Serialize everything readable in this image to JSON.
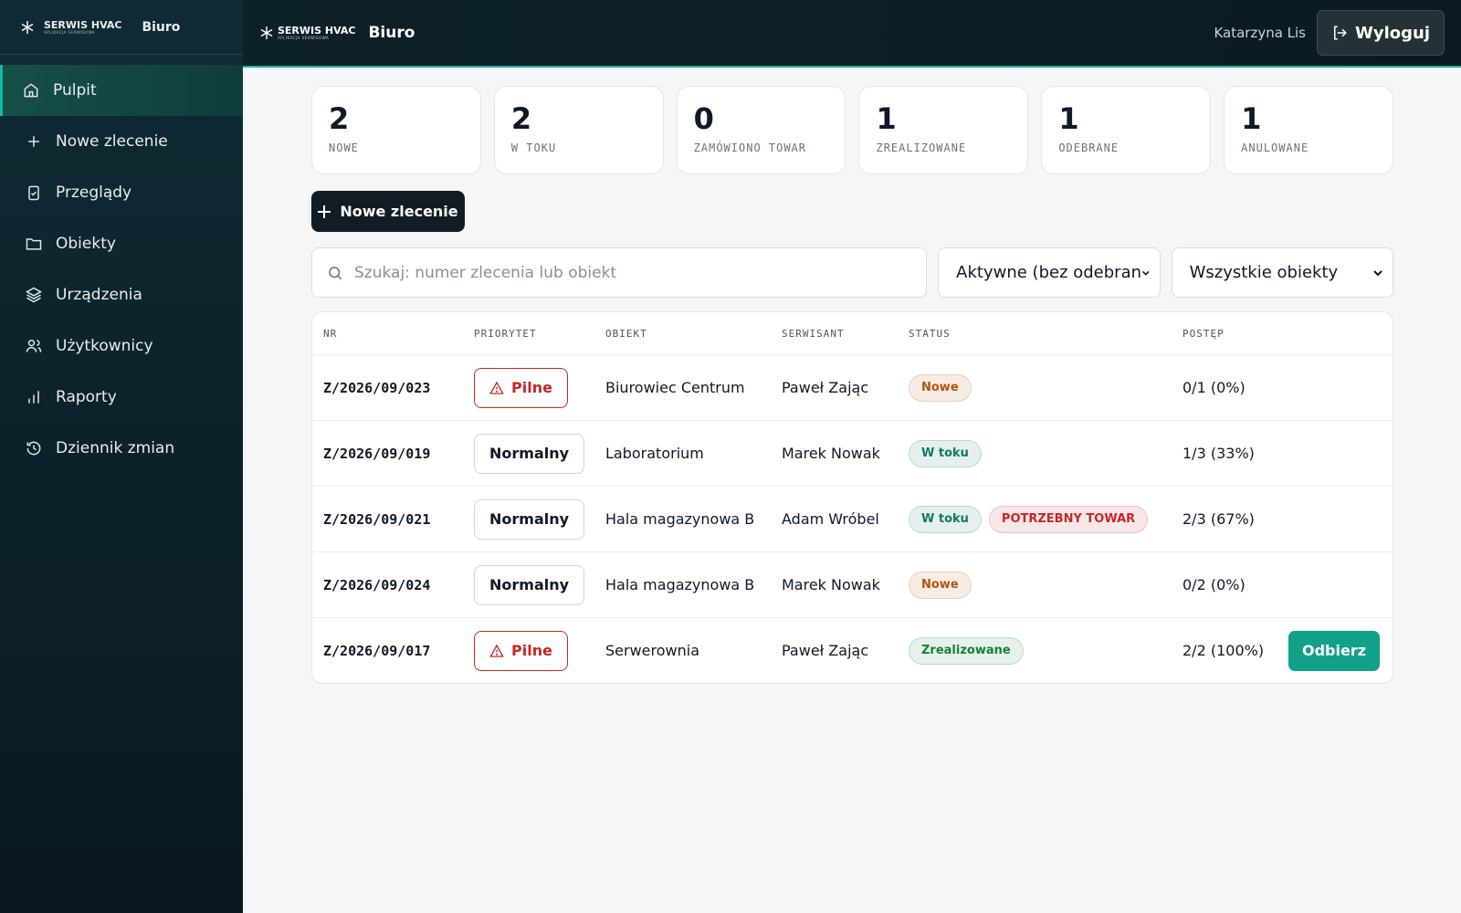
{
  "brand": {
    "name": "SERWIS HVAC",
    "tagline": "APLIKACJA SERWISOWA",
    "section": "Biuro"
  },
  "nav": [
    "Pulpit",
    "Nowe zlecenie",
    "Przeglądy",
    "Obiekty",
    "Urządzenia",
    "Użytkownicy",
    "Raporty",
    "Dziennik zmian"
  ],
  "header": {
    "user": "Katarzyna Lis",
    "logout": "Wyloguj"
  },
  "stats": [
    {
      "value": "2",
      "label": "NOWE"
    },
    {
      "value": "2",
      "label": "W TOKU"
    },
    {
      "value": "0",
      "label": "ZAMÓWIONO TOWAR"
    },
    {
      "value": "1",
      "label": "ZREALIZOWANE"
    },
    {
      "value": "1",
      "label": "ODEBRANE"
    },
    {
      "value": "1",
      "label": "ANULOWANE"
    }
  ],
  "new_order_button": "Nowe zlecenie",
  "search_placeholder": "Szukaj: numer zlecenia lub obiekt",
  "filters": [
    "Aktywne (bez odebran",
    "Wszystkie obiekty"
  ],
  "table": {
    "headers": [
      "NR",
      "PRIORYTET",
      "OBIEKT",
      "SERWISANT",
      "STATUS",
      "POSTĘP"
    ],
    "rows": [
      {
        "nr": "Z/2026/09/023",
        "priority": {
          "label": "Pilne",
          "color": "#c62828",
          "icon": "warning"
        },
        "object": "Biurowiec Centrum",
        "technician": "Paweł Zając",
        "statuses": [
          {
            "label": "Nowe",
            "color": "#b45309"
          }
        ],
        "progress": "0/1 (0%)"
      },
      {
        "nr": "Z/2026/09/019",
        "priority": {
          "label": "Normalny",
          "color": "#111827"
        },
        "object": "Laboratorium",
        "technician": "Marek Nowak",
        "statuses": [
          {
            "label": "W toku",
            "color": "#0f7a63"
          }
        ],
        "progress": "1/3 (33%)"
      },
      {
        "nr": "Z/2026/09/021",
        "priority": {
          "label": "Normalny",
          "color": "#111827"
        },
        "object": "Hala magazynowa B",
        "technician": "Adam Wróbel",
        "statuses": [
          {
            "label": "W toku",
            "color": "#0f7a63"
          },
          {
            "label": "POTRZEBNY TOWAR",
            "color": "#c62828"
          }
        ],
        "progress": "2/3 (67%)"
      },
      {
        "nr": "Z/2026/09/024",
        "priority": {
          "label": "Normalny",
          "color": "#111827"
        },
        "object": "Hala magazynowa B",
        "technician": "Marek Nowak",
        "statuses": [
          {
            "label": "Nowe",
            "color": "#b45309"
          }
        ],
        "progress": "0/2 (0%)"
      },
      {
        "nr": "Z/2026/09/017",
        "priority": {
          "label": "Pilne",
          "color": "#c62828",
          "icon": "warning"
        },
        "object": "Serwerownia",
        "technician": "Paweł Zając",
        "statuses": [
          {
            "label": "Zrealizowane",
            "color": "#15803d"
          }
        ],
        "progress": "2/2 (100%)",
        "action": "Odbierz"
      }
    ]
  }
}
